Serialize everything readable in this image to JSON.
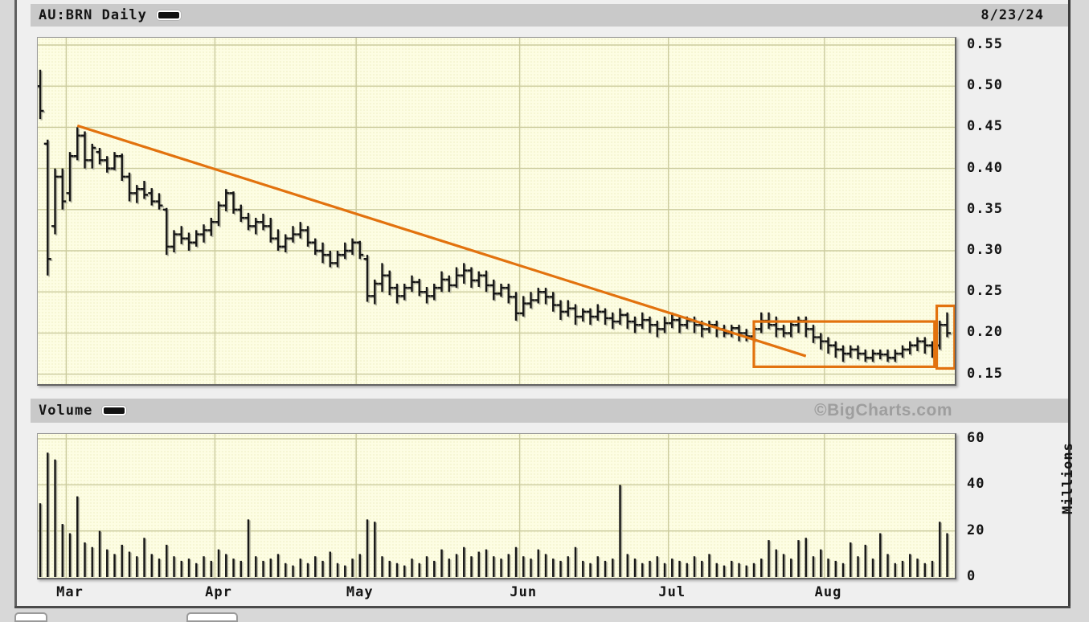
{
  "colors": {
    "accent_orange": "#e2720e",
    "bar_black": "#161616",
    "bar_shadow": "#b9b9a4",
    "grid": "#cbcb9e",
    "plot_bg": "#fdfde3",
    "header_bg": "#c9c9c9",
    "watermark_gray": "#9e9e9e",
    "frame_gray": "#4a4a4a"
  },
  "header": {
    "title": "AU:BRN Daily",
    "date": "8/23/24",
    "legend_swatch": "black-line"
  },
  "volume_section": {
    "label": "Volume",
    "watermark": "©BigCharts.com",
    "legend_swatch": "black-line"
  },
  "y_axis": {
    "price_ticks": [
      "0.55",
      "0.50",
      "0.45",
      "0.40",
      "0.35",
      "0.30",
      "0.25",
      "0.20",
      "0.15"
    ],
    "volume_ticks": [
      "60",
      "40",
      "20",
      "0"
    ],
    "volume_unit_label": "Millions"
  },
  "x_axis": {
    "month_labels": [
      "Mar",
      "Apr",
      "May",
      "Jun",
      "Jul",
      "Aug"
    ]
  },
  "chart_data": {
    "type": "ohlc",
    "symbol": "AU:BRN",
    "interval": "Daily",
    "as_of_date": "8/23/24",
    "title": "AU:BRN Daily",
    "price_ylim": [
      0.15,
      0.55
    ],
    "price_grid_step": 0.05,
    "volume_ylim": [
      0,
      60
    ],
    "volume_grid_step": 20,
    "volume_unit": "Millions",
    "legend_position": "top-left",
    "grid": true,
    "months": [
      {
        "label": "Mar",
        "day": 4
      },
      {
        "label": "Apr",
        "day": 24
      },
      {
        "label": "May",
        "day": 43
      },
      {
        "label": "Jun",
        "day": 65
      },
      {
        "label": "Jul",
        "day": 85
      },
      {
        "label": "Aug",
        "day": 106
      }
    ],
    "bars_ohlc": [
      [
        0.5,
        0.52,
        0.46,
        0.47
      ],
      [
        0.43,
        0.435,
        0.27,
        0.29
      ],
      [
        0.33,
        0.4,
        0.32,
        0.39
      ],
      [
        0.39,
        0.4,
        0.35,
        0.36
      ],
      [
        0.37,
        0.42,
        0.36,
        0.415
      ],
      [
        0.415,
        0.45,
        0.41,
        0.44
      ],
      [
        0.44,
        0.445,
        0.4,
        0.41
      ],
      [
        0.41,
        0.43,
        0.4,
        0.425
      ],
      [
        0.42,
        0.425,
        0.405,
        0.41
      ],
      [
        0.41,
        0.415,
        0.395,
        0.4
      ],
      [
        0.4,
        0.42,
        0.398,
        0.415
      ],
      [
        0.415,
        0.418,
        0.385,
        0.39
      ],
      [
        0.39,
        0.395,
        0.36,
        0.37
      ],
      [
        0.37,
        0.38,
        0.358,
        0.375
      ],
      [
        0.375,
        0.385,
        0.363,
        0.368
      ],
      [
        0.37,
        0.376,
        0.355,
        0.36
      ],
      [
        0.36,
        0.37,
        0.35,
        0.355
      ],
      [
        0.35,
        0.352,
        0.295,
        0.305
      ],
      [
        0.305,
        0.325,
        0.298,
        0.32
      ],
      [
        0.32,
        0.33,
        0.308,
        0.315
      ],
      [
        0.315,
        0.322,
        0.3,
        0.31
      ],
      [
        0.31,
        0.325,
        0.305,
        0.32
      ],
      [
        0.32,
        0.332,
        0.31,
        0.325
      ],
      [
        0.325,
        0.34,
        0.318,
        0.335
      ],
      [
        0.335,
        0.36,
        0.33,
        0.355
      ],
      [
        0.355,
        0.375,
        0.348,
        0.37
      ],
      [
        0.37,
        0.372,
        0.345,
        0.35
      ],
      [
        0.35,
        0.356,
        0.335,
        0.34
      ],
      [
        0.34,
        0.346,
        0.325,
        0.33
      ],
      [
        0.33,
        0.34,
        0.32,
        0.335
      ],
      [
        0.335,
        0.345,
        0.325,
        0.33
      ],
      [
        0.33,
        0.34,
        0.31,
        0.315
      ],
      [
        0.315,
        0.326,
        0.3,
        0.305
      ],
      [
        0.305,
        0.32,
        0.298,
        0.315
      ],
      [
        0.315,
        0.33,
        0.31,
        0.32
      ],
      [
        0.32,
        0.335,
        0.315,
        0.325
      ],
      [
        0.325,
        0.33,
        0.305,
        0.31
      ],
      [
        0.31,
        0.315,
        0.295,
        0.3
      ],
      [
        0.3,
        0.31,
        0.285,
        0.295
      ],
      [
        0.295,
        0.3,
        0.28,
        0.285
      ],
      [
        0.285,
        0.3,
        0.28,
        0.295
      ],
      [
        0.295,
        0.31,
        0.29,
        0.3
      ],
      [
        0.3,
        0.315,
        0.295,
        0.31
      ],
      [
        0.31,
        0.312,
        0.29,
        0.295
      ],
      [
        0.29,
        0.295,
        0.238,
        0.245
      ],
      [
        0.245,
        0.265,
        0.235,
        0.26
      ],
      [
        0.26,
        0.285,
        0.25,
        0.27
      ],
      [
        0.27,
        0.276,
        0.246,
        0.255
      ],
      [
        0.255,
        0.26,
        0.236,
        0.245
      ],
      [
        0.245,
        0.26,
        0.24,
        0.255
      ],
      [
        0.255,
        0.27,
        0.25,
        0.262
      ],
      [
        0.262,
        0.266,
        0.245,
        0.25
      ],
      [
        0.25,
        0.256,
        0.236,
        0.245
      ],
      [
        0.245,
        0.26,
        0.24,
        0.255
      ],
      [
        0.255,
        0.275,
        0.25,
        0.265
      ],
      [
        0.265,
        0.27,
        0.25,
        0.258
      ],
      [
        0.258,
        0.28,
        0.255,
        0.27
      ],
      [
        0.27,
        0.285,
        0.26,
        0.276
      ],
      [
        0.276,
        0.28,
        0.255,
        0.264
      ],
      [
        0.264,
        0.275,
        0.256,
        0.27
      ],
      [
        0.27,
        0.276,
        0.25,
        0.258
      ],
      [
        0.258,
        0.265,
        0.24,
        0.248
      ],
      [
        0.248,
        0.26,
        0.244,
        0.255
      ],
      [
        0.255,
        0.26,
        0.236,
        0.244
      ],
      [
        0.244,
        0.25,
        0.215,
        0.224
      ],
      [
        0.224,
        0.245,
        0.22,
        0.236
      ],
      [
        0.236,
        0.25,
        0.23,
        0.24
      ],
      [
        0.24,
        0.255,
        0.236,
        0.25
      ],
      [
        0.25,
        0.255,
        0.235,
        0.244
      ],
      [
        0.244,
        0.25,
        0.226,
        0.234
      ],
      [
        0.234,
        0.24,
        0.216,
        0.226
      ],
      [
        0.226,
        0.24,
        0.22,
        0.23
      ],
      [
        0.23,
        0.235,
        0.21,
        0.22
      ],
      [
        0.22,
        0.23,
        0.214,
        0.226
      ],
      [
        0.226,
        0.23,
        0.21,
        0.22
      ],
      [
        0.22,
        0.235,
        0.215,
        0.226
      ],
      [
        0.226,
        0.23,
        0.21,
        0.218
      ],
      [
        0.218,
        0.225,
        0.205,
        0.214
      ],
      [
        0.214,
        0.23,
        0.21,
        0.222
      ],
      [
        0.222,
        0.225,
        0.205,
        0.214
      ],
      [
        0.214,
        0.22,
        0.2,
        0.21
      ],
      [
        0.21,
        0.225,
        0.205,
        0.216
      ],
      [
        0.216,
        0.22,
        0.2,
        0.21
      ],
      [
        0.21,
        0.215,
        0.195,
        0.205
      ],
      [
        0.205,
        0.22,
        0.2,
        0.212
      ],
      [
        0.212,
        0.225,
        0.206,
        0.216
      ],
      [
        0.216,
        0.22,
        0.2,
        0.21
      ],
      [
        0.21,
        0.22,
        0.205,
        0.215
      ],
      [
        0.215,
        0.22,
        0.2,
        0.21
      ],
      [
        0.21,
        0.215,
        0.195,
        0.205
      ],
      [
        0.205,
        0.215,
        0.2,
        0.21
      ],
      [
        0.21,
        0.215,
        0.195,
        0.205
      ],
      [
        0.205,
        0.21,
        0.195,
        0.2
      ],
      [
        0.2,
        0.21,
        0.195,
        0.206
      ],
      [
        0.206,
        0.21,
        0.19,
        0.2
      ],
      [
        0.2,
        0.205,
        0.19,
        0.196
      ],
      [
        0.196,
        0.21,
        0.19,
        0.205
      ],
      [
        0.205,
        0.225,
        0.2,
        0.215
      ],
      [
        0.215,
        0.225,
        0.205,
        0.21
      ],
      [
        0.21,
        0.22,
        0.195,
        0.205
      ],
      [
        0.205,
        0.21,
        0.195,
        0.2
      ],
      [
        0.2,
        0.215,
        0.195,
        0.21
      ],
      [
        0.21,
        0.22,
        0.2,
        0.215
      ],
      [
        0.215,
        0.22,
        0.195,
        0.205
      ],
      [
        0.205,
        0.21,
        0.188,
        0.195
      ],
      [
        0.195,
        0.2,
        0.18,
        0.19
      ],
      [
        0.19,
        0.195,
        0.175,
        0.185
      ],
      [
        0.185,
        0.19,
        0.17,
        0.18
      ],
      [
        0.18,
        0.185,
        0.165,
        0.175
      ],
      [
        0.175,
        0.185,
        0.17,
        0.18
      ],
      [
        0.18,
        0.185,
        0.168,
        0.175
      ],
      [
        0.175,
        0.18,
        0.165,
        0.17
      ],
      [
        0.17,
        0.18,
        0.165,
        0.175
      ],
      [
        0.175,
        0.18,
        0.168,
        0.174
      ],
      [
        0.174,
        0.18,
        0.165,
        0.17
      ],
      [
        0.17,
        0.18,
        0.165,
        0.175
      ],
      [
        0.175,
        0.185,
        0.17,
        0.18
      ],
      [
        0.18,
        0.19,
        0.174,
        0.185
      ],
      [
        0.185,
        0.195,
        0.178,
        0.19
      ],
      [
        0.19,
        0.195,
        0.175,
        0.185
      ],
      [
        0.185,
        0.19,
        0.17,
        0.18
      ],
      [
        0.185,
        0.215,
        0.18,
        0.21
      ],
      [
        0.21,
        0.225,
        0.195,
        0.2
      ]
    ],
    "volume_millions": [
      32,
      54,
      51,
      23,
      19,
      35,
      15,
      13,
      20,
      12,
      10,
      14,
      11,
      9,
      17,
      10,
      8,
      14,
      9,
      7,
      8,
      6,
      9,
      7,
      12,
      10,
      8,
      7,
      25,
      9,
      7,
      8,
      10,
      6,
      5,
      8,
      6,
      9,
      7,
      11,
      6,
      5,
      8,
      10,
      25,
      24,
      9,
      7,
      6,
      5,
      8,
      6,
      9,
      7,
      12,
      8,
      10,
      13,
      9,
      11,
      12,
      9,
      8,
      10,
      13,
      9,
      8,
      12,
      10,
      8,
      7,
      9,
      13,
      7,
      6,
      9,
      7,
      8,
      40,
      10,
      8,
      6,
      7,
      9,
      6,
      8,
      7,
      6,
      9,
      7,
      10,
      6,
      5,
      7,
      6,
      5,
      6,
      8,
      16,
      12,
      10,
      8,
      16,
      17,
      9,
      12,
      8,
      7,
      6,
      15,
      9,
      14,
      8,
      19,
      10,
      6,
      7,
      10,
      8,
      6,
      7,
      24,
      19
    ],
    "annotations": [
      {
        "type": "trendline",
        "from_day": 5,
        "from_price": 0.452,
        "to_day": 103,
        "to_price": 0.172
      },
      {
        "type": "rect",
        "from_day": 96,
        "to_day": 120.3,
        "top_price": 0.214,
        "bottom_price": 0.159
      },
      {
        "type": "rect",
        "from_day": 120.6,
        "to_day": 123,
        "top_price": 0.233,
        "bottom_price": 0.157
      }
    ]
  }
}
